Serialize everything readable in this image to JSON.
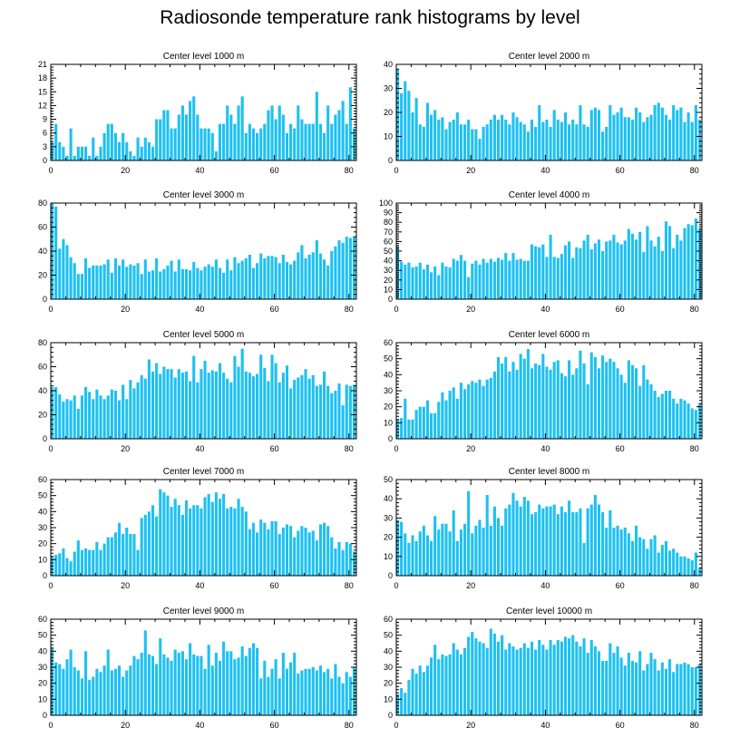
{
  "title": "Radiosonde temperature rank histograms by level",
  "bar_color": "#1ec0f2",
  "chart_data": [
    {
      "type": "bar",
      "title": "Center level 1000 m",
      "xlim": [
        0,
        82
      ],
      "ylim": [
        0,
        21
      ],
      "xticks": [
        0,
        20,
        40,
        60,
        80
      ],
      "yticks": [
        0,
        3,
        6,
        9,
        12,
        15,
        18,
        21
      ],
      "values": [
        4,
        8,
        4,
        3,
        1,
        7,
        1,
        3,
        3,
        3,
        1,
        5,
        1,
        3,
        6,
        8,
        8,
        6,
        4,
        6,
        4,
        2,
        1,
        5,
        3,
        5,
        4,
        3,
        9,
        9,
        11,
        11,
        7,
        7,
        10,
        12,
        10,
        13,
        14,
        10,
        7,
        7,
        7,
        6,
        2,
        8,
        8,
        12,
        10,
        8,
        12,
        14,
        6,
        8,
        7,
        6,
        7,
        8,
        11,
        12,
        9,
        12,
        10,
        6,
        8,
        7,
        12,
        9,
        8,
        8,
        8,
        15,
        8,
        6,
        12,
        8,
        10,
        11,
        13,
        8,
        16,
        7,
        12,
        7,
        6,
        16,
        10,
        15,
        17,
        19,
        9
      ]
    },
    {
      "type": "bar",
      "title": "Center level 2000 m",
      "xlim": [
        0,
        82
      ],
      "ylim": [
        0,
        40
      ],
      "xticks": [
        0,
        20,
        40,
        60,
        80
      ],
      "yticks": [
        0,
        10,
        20,
        30,
        40
      ],
      "values": [
        38,
        28,
        33,
        29,
        20,
        26,
        15,
        14,
        24,
        19,
        21,
        17,
        18,
        13,
        16,
        17,
        20,
        15,
        15,
        17,
        13,
        13,
        9,
        14,
        15,
        17,
        19,
        17,
        19,
        17,
        15,
        20,
        18,
        16,
        15,
        12,
        17,
        14,
        23,
        16,
        17,
        14,
        21,
        17,
        16,
        20,
        15,
        17,
        15,
        23,
        15,
        14,
        21,
        22,
        21,
        12,
        14,
        23,
        19,
        20,
        22,
        18,
        18,
        17,
        22,
        20,
        16,
        18,
        19,
        23,
        24,
        22,
        19,
        17,
        23,
        21,
        22,
        16,
        20,
        16,
        23,
        17,
        14,
        16,
        15,
        21,
        21,
        16,
        24,
        20
      ]
    },
    {
      "type": "bar",
      "title": "Center level 3000 m",
      "xlim": [
        0,
        82
      ],
      "ylim": [
        0,
        80
      ],
      "xticks": [
        0,
        20,
        40,
        60,
        80
      ],
      "yticks": [
        0,
        20,
        40,
        60,
        80
      ],
      "values": [
        80,
        77,
        42,
        50,
        45,
        35,
        30,
        21,
        21,
        34,
        26,
        28,
        28,
        28,
        29,
        33,
        22,
        34,
        28,
        33,
        27,
        29,
        28,
        30,
        21,
        33,
        23,
        24,
        34,
        23,
        25,
        28,
        32,
        23,
        33,
        25,
        25,
        24,
        31,
        26,
        24,
        27,
        29,
        27,
        33,
        26,
        22,
        33,
        24,
        35,
        30,
        32,
        34,
        37,
        26,
        30,
        38,
        34,
        36,
        36,
        35,
        30,
        37,
        31,
        29,
        32,
        39,
        45,
        34,
        37,
        39,
        49,
        38,
        33,
        28,
        40,
        44,
        49,
        47,
        52,
        51,
        52,
        40,
        29,
        33,
        35,
        31,
        40,
        43,
        44
      ]
    },
    {
      "type": "bar",
      "title": "Center level 4000 m",
      "xlim": [
        0,
        82
      ],
      "ylim": [
        0,
        100
      ],
      "xticks": [
        0,
        20,
        40,
        60,
        80
      ],
      "yticks": [
        0,
        10,
        20,
        30,
        40,
        50,
        60,
        70,
        80,
        90,
        100
      ],
      "values": [
        55,
        39,
        36,
        38,
        33,
        34,
        38,
        31,
        36,
        28,
        34,
        25,
        38,
        34,
        33,
        42,
        40,
        46,
        40,
        23,
        37,
        40,
        36,
        42,
        38,
        42,
        39,
        43,
        41,
        48,
        40,
        48,
        41,
        42,
        40,
        40,
        57,
        55,
        54,
        57,
        44,
        67,
        44,
        43,
        47,
        56,
        60,
        43,
        54,
        53,
        61,
        67,
        52,
        58,
        62,
        50,
        60,
        61,
        67,
        59,
        57,
        61,
        73,
        68,
        62,
        70,
        49,
        76,
        61,
        55,
        65,
        50,
        81,
        76,
        53,
        67,
        61,
        74,
        78,
        77,
        84,
        73,
        84,
        56,
        53,
        55,
        60,
        56,
        50,
        54
      ]
    },
    {
      "type": "bar",
      "title": "Center level 5000 m",
      "xlim": [
        0,
        82
      ],
      "ylim": [
        0,
        80
      ],
      "xticks": [
        0,
        20,
        40,
        60,
        80
      ],
      "yticks": [
        0,
        20,
        40,
        60,
        80
      ],
      "values": [
        43,
        43,
        37,
        31,
        33,
        32,
        36,
        25,
        36,
        43,
        39,
        33,
        41,
        36,
        33,
        36,
        41,
        40,
        32,
        45,
        33,
        49,
        42,
        47,
        53,
        50,
        66,
        56,
        63,
        54,
        60,
        58,
        58,
        51,
        58,
        55,
        56,
        48,
        69,
        47,
        58,
        65,
        55,
        57,
        56,
        63,
        55,
        50,
        47,
        69,
        60,
        75,
        56,
        55,
        52,
        54,
        70,
        59,
        48,
        70,
        63,
        47,
        55,
        61,
        42,
        49,
        51,
        53,
        58,
        50,
        53,
        44,
        45,
        56,
        44,
        38,
        40,
        46,
        28,
        45,
        44,
        45,
        38,
        40,
        37,
        50,
        41,
        37,
        41,
        44
      ]
    },
    {
      "type": "bar",
      "title": "Center level 6000 m",
      "xlim": [
        0,
        82
      ],
      "ylim": [
        0,
        60
      ],
      "xticks": [
        0,
        20,
        40,
        60,
        80
      ],
      "yticks": [
        0,
        10,
        20,
        30,
        40,
        50,
        60
      ],
      "values": [
        12,
        13,
        25,
        12,
        12,
        18,
        20,
        20,
        24,
        16,
        16,
        23,
        29,
        24,
        30,
        32,
        25,
        35,
        31,
        34,
        36,
        35,
        37,
        33,
        37,
        38,
        42,
        51,
        47,
        51,
        42,
        48,
        43,
        53,
        50,
        56,
        44,
        47,
        46,
        53,
        45,
        43,
        48,
        49,
        41,
        39,
        49,
        40,
        44,
        55,
        47,
        34,
        54,
        51,
        44,
        52,
        48,
        50,
        48,
        44,
        40,
        35,
        49,
        46,
        44,
        33,
        46,
        37,
        34,
        30,
        26,
        28,
        30,
        30,
        25,
        22,
        25,
        24,
        22,
        19,
        18,
        22,
        17,
        19,
        17,
        21,
        22,
        18,
        24,
        17
      ]
    },
    {
      "type": "bar",
      "title": "Center level 7000 m",
      "xlim": [
        0,
        82
      ],
      "ylim": [
        0,
        60
      ],
      "xticks": [
        0,
        20,
        40,
        60,
        80
      ],
      "yticks": [
        0,
        10,
        20,
        30,
        40,
        50,
        60
      ],
      "values": [
        12,
        13,
        14,
        17,
        11,
        9,
        15,
        22,
        16,
        17,
        16,
        16,
        21,
        16,
        20,
        24,
        24,
        27,
        33,
        26,
        30,
        26,
        26,
        16,
        36,
        38,
        40,
        44,
        37,
        54,
        52,
        50,
        43,
        48,
        44,
        38,
        47,
        42,
        44,
        44,
        42,
        49,
        51,
        46,
        52,
        48,
        51,
        42,
        43,
        42,
        48,
        43,
        40,
        29,
        33,
        27,
        35,
        33,
        29,
        34,
        34,
        26,
        30,
        32,
        31,
        24,
        28,
        31,
        30,
        27,
        28,
        22,
        32,
        33,
        31,
        24,
        17,
        21,
        16,
        21,
        20,
        15,
        11,
        10,
        15,
        18,
        15,
        17,
        5,
        11
      ]
    },
    {
      "type": "bar",
      "title": "Center level 8000 m",
      "xlim": [
        0,
        82
      ],
      "ylim": [
        0,
        50
      ],
      "xticks": [
        0,
        20,
        40,
        60,
        80
      ],
      "yticks": [
        0,
        10,
        20,
        30,
        40,
        50
      ],
      "values": [
        29,
        28,
        22,
        17,
        21,
        18,
        23,
        26,
        21,
        18,
        31,
        24,
        27,
        27,
        23,
        34,
        18,
        24,
        27,
        44,
        22,
        26,
        29,
        25,
        42,
        26,
        36,
        30,
        26,
        35,
        37,
        43,
        39,
        36,
        41,
        39,
        32,
        33,
        37,
        35,
        36,
        36,
        37,
        32,
        36,
        33,
        39,
        33,
        33,
        35,
        17,
        35,
        37,
        42,
        37,
        33,
        25,
        34,
        25,
        26,
        24,
        25,
        22,
        18,
        26,
        20,
        19,
        14,
        19,
        21,
        12,
        16,
        18,
        13,
        14,
        12,
        10,
        10,
        9,
        8,
        12,
        4,
        4,
        2,
        10,
        12,
        14,
        12,
        10,
        5
      ]
    },
    {
      "type": "bar",
      "title": "Center level 9000 m",
      "xlim": [
        0,
        82
      ],
      "ylim": [
        0,
        60
      ],
      "xticks": [
        0,
        20,
        40,
        60,
        80
      ],
      "yticks": [
        0,
        10,
        20,
        30,
        40,
        50,
        60
      ],
      "values": [
        42,
        33,
        32,
        29,
        35,
        41,
        30,
        28,
        23,
        40,
        22,
        24,
        29,
        27,
        31,
        41,
        28,
        29,
        31,
        24,
        28,
        31,
        37,
        35,
        39,
        53,
        38,
        37,
        32,
        48,
        38,
        36,
        34,
        41,
        39,
        40,
        35,
        45,
        38,
        37,
        37,
        29,
        44,
        31,
        39,
        34,
        46,
        40,
        40,
        35,
        36,
        43,
        37,
        42,
        45,
        42,
        23,
        34,
        24,
        29,
        35,
        23,
        39,
        29,
        33,
        39,
        26,
        28,
        29,
        29,
        30,
        28,
        31,
        27,
        29,
        23,
        32,
        24,
        20,
        27,
        24,
        30,
        20,
        20,
        22,
        15,
        27,
        17,
        28,
        18
      ]
    },
    {
      "type": "bar",
      "title": "Center level 10000 m",
      "xlim": [
        0,
        82
      ],
      "ylim": [
        0,
        60
      ],
      "xticks": [
        0,
        20,
        40,
        60,
        80
      ],
      "yticks": [
        0,
        10,
        20,
        30,
        40,
        50,
        60
      ],
      "values": [
        13,
        17,
        14,
        22,
        29,
        26,
        31,
        27,
        31,
        36,
        44,
        35,
        38,
        37,
        38,
        45,
        41,
        38,
        42,
        49,
        52,
        48,
        46,
        45,
        42,
        54,
        51,
        46,
        50,
        41,
        45,
        43,
        41,
        42,
        45,
        42,
        46,
        41,
        47,
        44,
        41,
        47,
        44,
        47,
        46,
        49,
        48,
        50,
        46,
        43,
        48,
        39,
        47,
        43,
        40,
        34,
        34,
        45,
        39,
        43,
        36,
        31,
        39,
        34,
        33,
        40,
        28,
        32,
        39,
        35,
        28,
        33,
        29,
        35,
        27,
        32,
        32,
        33,
        32,
        30,
        30,
        32,
        28,
        25,
        29,
        30,
        24,
        26,
        23,
        24
      ]
    }
  ]
}
